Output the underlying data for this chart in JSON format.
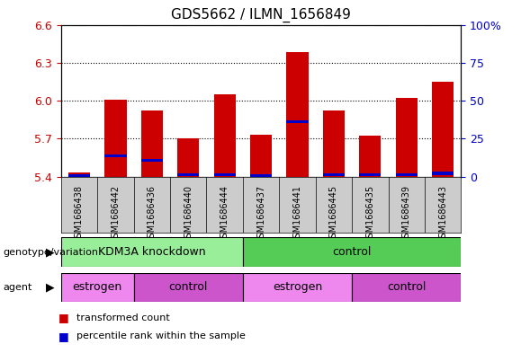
{
  "title": "GDS5662 / ILMN_1656849",
  "samples": [
    "GSM1686438",
    "GSM1686442",
    "GSM1686436",
    "GSM1686440",
    "GSM1686444",
    "GSM1686437",
    "GSM1686441",
    "GSM1686445",
    "GSM1686435",
    "GSM1686439",
    "GSM1686443"
  ],
  "bar_values": [
    5.43,
    6.01,
    5.92,
    5.7,
    6.05,
    5.73,
    6.38,
    5.92,
    5.72,
    6.02,
    6.15
  ],
  "blue_values": [
    5.405,
    5.565,
    5.525,
    5.415,
    5.415,
    5.405,
    5.835,
    5.415,
    5.415,
    5.415,
    5.425
  ],
  "ymin": 5.4,
  "ymax": 6.6,
  "yticks": [
    5.4,
    5.7,
    6.0,
    6.3,
    6.6
  ],
  "right_yticks": [
    0,
    25,
    50,
    75,
    100
  ],
  "right_ytick_labels": [
    "0",
    "25",
    "50",
    "75",
    "100%"
  ],
  "bar_color": "#cc0000",
  "blue_color": "#0000cc",
  "bar_width": 0.6,
  "background_color": "#ffffff",
  "plot_bg": "#ffffff",
  "sample_bg": "#cccccc",
  "genotype_groups": [
    {
      "label": "KDM3A knockdown",
      "start": 0,
      "end": 5,
      "color": "#99ee99"
    },
    {
      "label": "control",
      "start": 5,
      "end": 11,
      "color": "#55cc55"
    }
  ],
  "agent_groups": [
    {
      "label": "estrogen",
      "start": 0,
      "end": 2,
      "color": "#ee88ee"
    },
    {
      "label": "control",
      "start": 2,
      "end": 5,
      "color": "#cc55cc"
    },
    {
      "label": "estrogen",
      "start": 5,
      "end": 8,
      "color": "#ee88ee"
    },
    {
      "label": "control",
      "start": 8,
      "end": 11,
      "color": "#cc55cc"
    }
  ],
  "genotype_label": "genotype/variation",
  "agent_label": "agent",
  "legend_items": [
    {
      "label": "transformed count",
      "color": "#cc0000"
    },
    {
      "label": "percentile rank within the sample",
      "color": "#0000cc"
    }
  ],
  "tick_color_left": "#cc0000",
  "tick_color_right": "#0000cc"
}
